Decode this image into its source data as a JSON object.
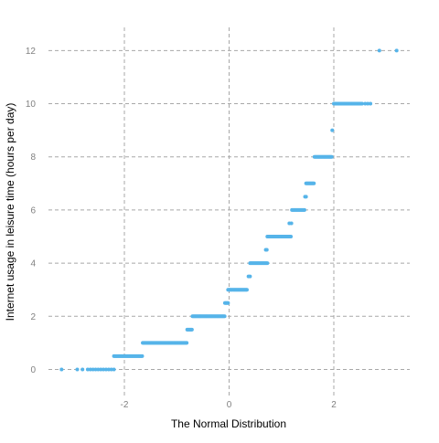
{
  "chart_data": {
    "type": "scatter",
    "title": "",
    "xlabel": "The Normal Distribution",
    "ylabel": "Internet usage in leisure time (hours per day)",
    "xlim": [
      -3.45,
      3.45
    ],
    "ylim": [
      -0.98,
      12.87
    ],
    "xticks": [
      -2,
      0,
      2
    ],
    "yticks": [
      0,
      2,
      4,
      6,
      8,
      10,
      12
    ],
    "xtick_labels": [
      "-2",
      "0",
      "2"
    ],
    "ytick_labels": [
      "0",
      "2",
      "4",
      "6",
      "8",
      "10",
      "12"
    ],
    "grid": true,
    "legend": "none",
    "point_color": "#56B4E9",
    "grid_color": "#a8a8a8",
    "series": [
      {
        "groups": [
          {
            "y": 0,
            "points": [
              -3.2,
              -2.9,
              -2.8,
              -2.7,
              -2.65,
              -2.6,
              -2.55,
              -2.5,
              -2.45,
              -2.4,
              -2.35,
              -2.3,
              -2.25,
              -2.2
            ]
          },
          {
            "y": 0.5,
            "runs": [
              [
                -2.2,
                -1.65
              ]
            ]
          },
          {
            "y": 1,
            "runs": [
              [
                -1.65,
                -0.8
              ]
            ]
          },
          {
            "y": 1.5,
            "runs": [
              [
                -0.8,
                -0.7
              ]
            ]
          },
          {
            "y": 2,
            "runs": [
              [
                -0.7,
                -0.08
              ]
            ]
          },
          {
            "y": 2.5,
            "runs": [
              [
                -0.08,
                -0.02
              ]
            ]
          },
          {
            "y": 3,
            "runs": [
              [
                -0.02,
                0.35
              ]
            ]
          },
          {
            "y": 3.5,
            "points": [
              0.37,
              0.4
            ]
          },
          {
            "y": 4,
            "runs": [
              [
                0.4,
                0.73
              ]
            ]
          },
          {
            "y": 4.5,
            "points": [
              0.7,
              0.72
            ]
          },
          {
            "y": 5,
            "runs": [
              [
                0.73,
                1.18
              ]
            ]
          },
          {
            "y": 5.5,
            "points": [
              1.15,
              1.19
            ]
          },
          {
            "y": 6,
            "runs": [
              [
                1.2,
                1.45
              ]
            ]
          },
          {
            "y": 6.5,
            "points": [
              1.45,
              1.47
            ]
          },
          {
            "y": 7,
            "runs": [
              [
                1.47,
                1.62
              ]
            ]
          },
          {
            "y": 8,
            "runs": [
              [
                1.63,
                1.97
              ]
            ]
          },
          {
            "y": 9,
            "points": [
              1.97
            ]
          },
          {
            "y": 10,
            "runs": [
              [
                2.0,
                2.55
              ]
            ],
            "points": [
              2.6,
              2.65,
              2.7
            ]
          },
          {
            "y": 12,
            "points": [
              2.87,
              3.2
            ]
          }
        ]
      }
    ]
  }
}
